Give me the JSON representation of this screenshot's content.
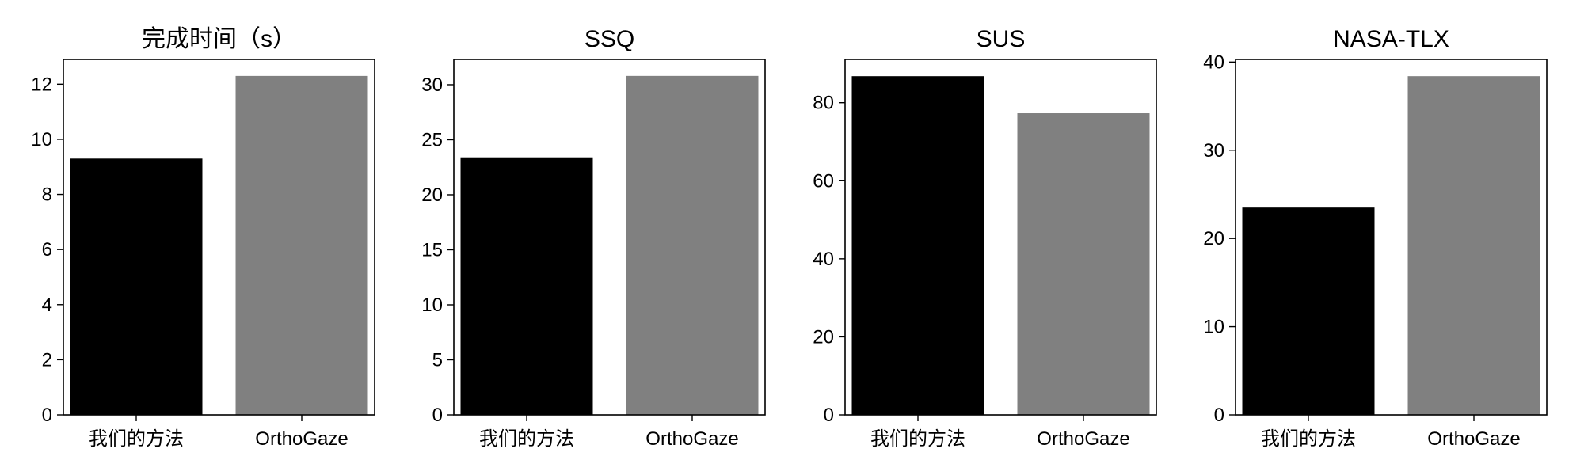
{
  "chart_data": [
    {
      "type": "bar",
      "title": "完成时间（s）",
      "categories": [
        "我们的方法",
        "OrthoGaze"
      ],
      "values": [
        9.3,
        12.3
      ],
      "colors": [
        "#000000",
        "#808080"
      ],
      "ylim": [
        0,
        12.9
      ],
      "yticks": [
        0,
        2,
        4,
        6,
        8,
        10,
        12
      ],
      "grid": false
    },
    {
      "type": "bar",
      "title": "SSQ",
      "categories": [
        "我们的方法",
        "OrthoGaze"
      ],
      "values": [
        23.4,
        30.8
      ],
      "colors": [
        "#000000",
        "#808080"
      ],
      "ylim": [
        0,
        32.3
      ],
      "yticks": [
        0,
        5,
        10,
        15,
        20,
        25,
        30
      ],
      "grid": false
    },
    {
      "type": "bar",
      "title": "SUS",
      "categories": [
        "我们的方法",
        "OrthoGaze"
      ],
      "values": [
        86.8,
        77.3
      ],
      "colors": [
        "#000000",
        "#808080"
      ],
      "ylim": [
        0,
        91.1
      ],
      "yticks": [
        0,
        20,
        40,
        60,
        80
      ],
      "grid": false
    },
    {
      "type": "bar",
      "title": "NASA-TLX",
      "categories": [
        "我们的方法",
        "OrthoGaze"
      ],
      "values": [
        23.5,
        38.4
      ],
      "colors": [
        "#000000",
        "#808080"
      ],
      "ylim": [
        0,
        40.3
      ],
      "yticks": [
        0,
        10,
        20,
        30,
        40
      ],
      "grid": false
    }
  ]
}
